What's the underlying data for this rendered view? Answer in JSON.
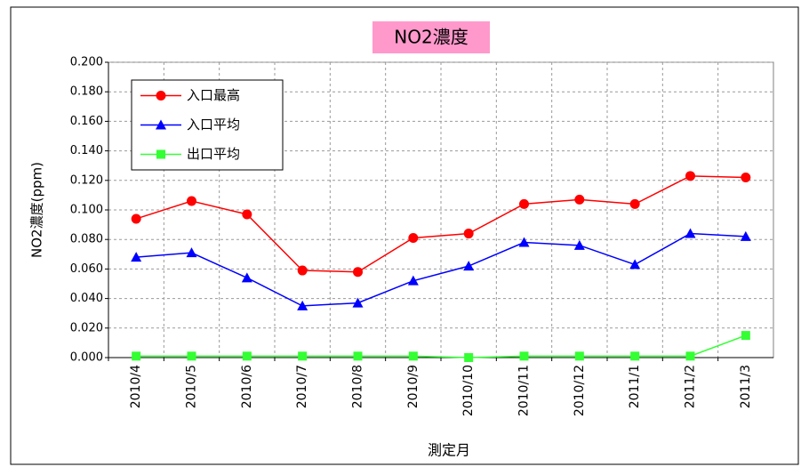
{
  "chart_data": {
    "type": "line",
    "title": "NO2濃度",
    "x_label": "測定月",
    "y_label": "NO2濃度(ppm)",
    "categories": [
      "2010/4",
      "2010/5",
      "2010/6",
      "2010/7",
      "2010/8",
      "2010/9",
      "2010/10",
      "2010/11",
      "2010/12",
      "2011/1",
      "2011/2",
      "2011/3"
    ],
    "series": [
      {
        "name": "入口最高",
        "color": "#ff0000",
        "marker": "circle",
        "values": [
          0.094,
          0.106,
          0.097,
          0.059,
          0.058,
          0.081,
          0.084,
          0.104,
          0.107,
          0.104,
          0.123,
          0.122
        ]
      },
      {
        "name": "入口平均",
        "color": "#0000ff",
        "marker": "triangle",
        "values": [
          0.068,
          0.071,
          0.054,
          0.035,
          0.037,
          0.052,
          0.062,
          0.078,
          0.076,
          0.063,
          0.084,
          0.082
        ]
      },
      {
        "name": "出口平均",
        "color": "#33ff33",
        "marker": "square",
        "values": [
          0.001,
          0.001,
          0.001,
          0.001,
          0.001,
          0.001,
          0.0,
          0.001,
          0.001,
          0.001,
          0.001,
          0.015
        ]
      }
    ],
    "ylim": [
      0,
      0.2
    ],
    "yticks": [
      {
        "value": 0,
        "label": "0.000"
      },
      {
        "value": 0.02,
        "label": "0.020"
      },
      {
        "value": 0.04,
        "label": "0.040"
      },
      {
        "value": 0.06,
        "label": "0.060"
      },
      {
        "value": 0.08,
        "label": "0.080"
      },
      {
        "value": 0.1,
        "label": "0.100"
      },
      {
        "value": 0.12,
        "label": "0.120"
      },
      {
        "value": 0.14,
        "label": "0.140"
      },
      {
        "value": 0.16,
        "label": "0.160"
      },
      {
        "value": 0.18,
        "label": "0.180"
      },
      {
        "value": 0.2,
        "label": "0.200"
      }
    ],
    "grid": true,
    "legend": "upper left"
  }
}
